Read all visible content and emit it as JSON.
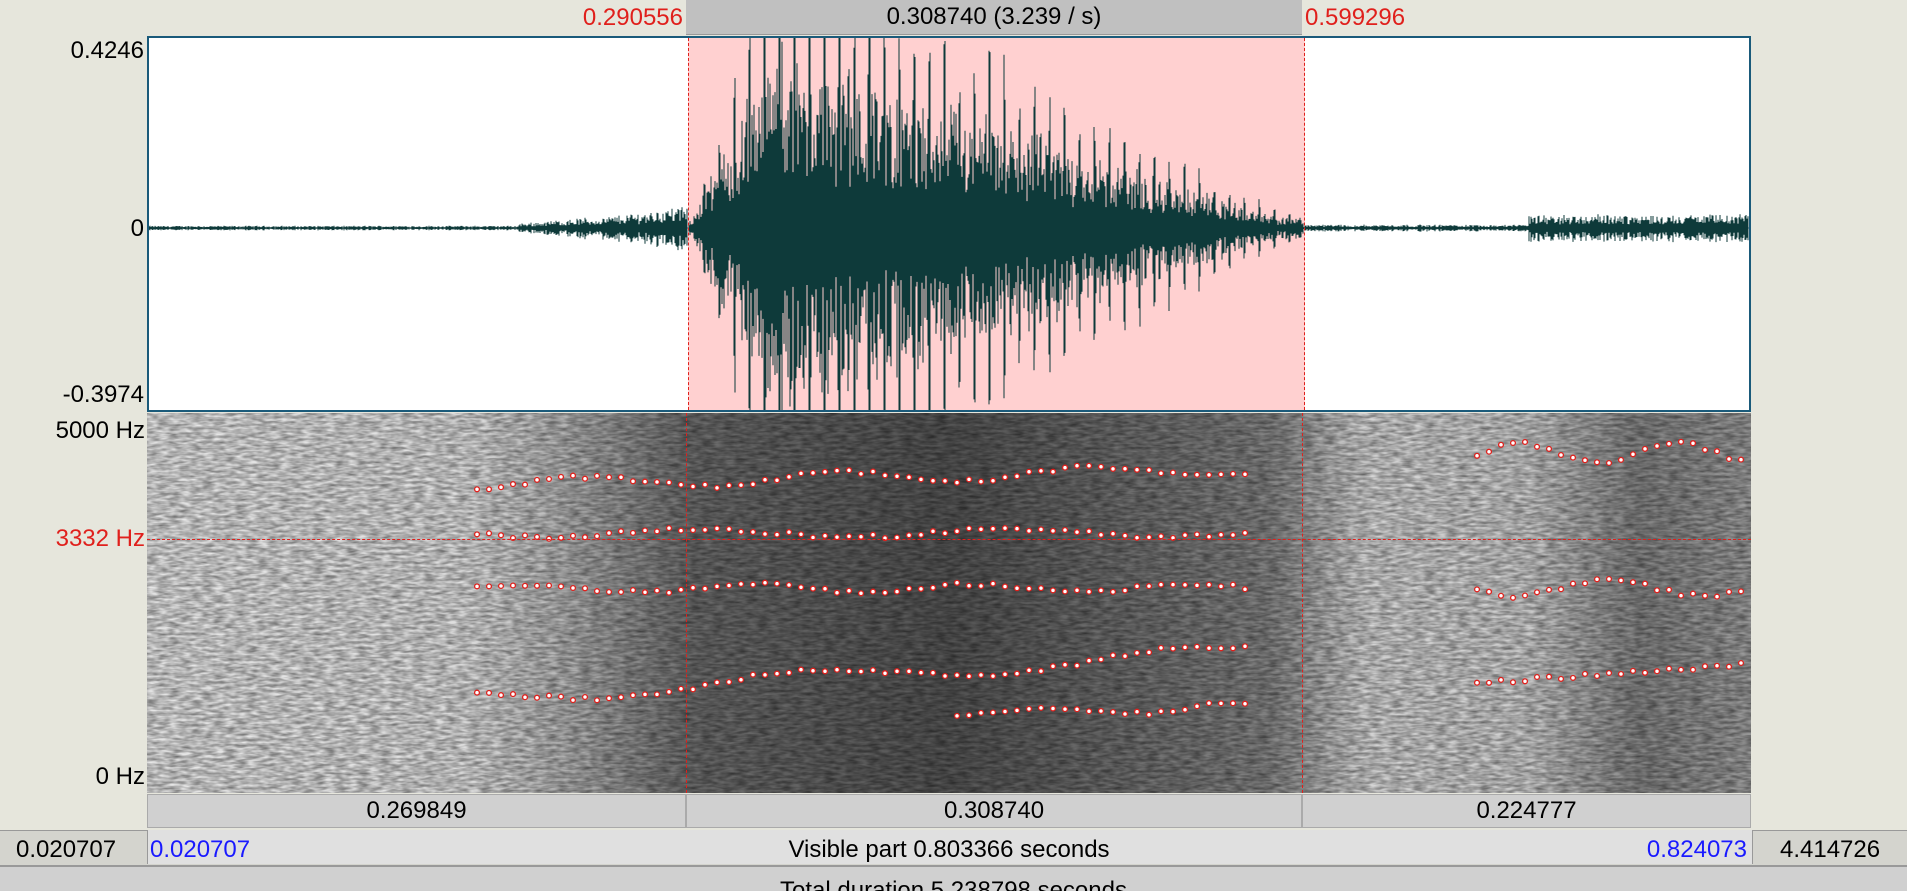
{
  "top": {
    "sel_start": "0.290556",
    "sel_length": "0.308740 (3.239 / s)",
    "sel_end": "0.599296"
  },
  "waveform": {
    "y_max": "0.4246",
    "y_zero": "0",
    "y_min": "-0.3974"
  },
  "spectrogram": {
    "f_max": "5000 Hz",
    "cursor_freq": "3332 Hz",
    "f_min": "0 Hz"
  },
  "intervals": {
    "before": "0.269849",
    "selection": "0.308740",
    "after": "0.224777"
  },
  "visible": {
    "left_outer": "0.020707",
    "left_inner": "0.020707",
    "label": "Visible part 0.803366 seconds",
    "right_inner": "0.824073",
    "right_outer": "4.414726"
  },
  "total": {
    "label": "Total duration 5.238798 seconds"
  },
  "colors": {
    "selection": "#ffd0d0",
    "cursor": "#e0201c",
    "waveform": "#0e3a3a",
    "formant": "#e0201c"
  }
}
